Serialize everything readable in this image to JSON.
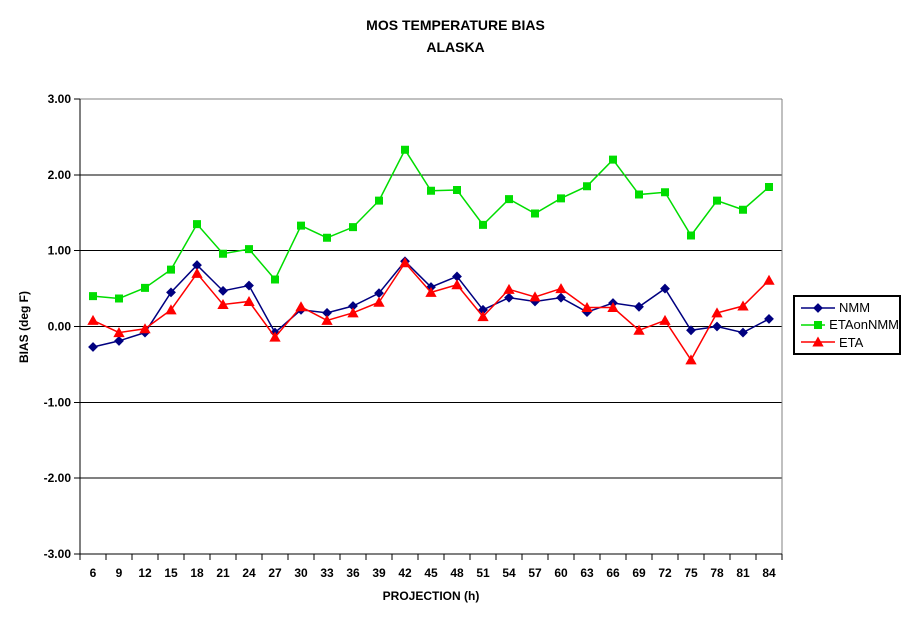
{
  "title": {
    "line1": "MOS TEMPERATURE BIAS",
    "line2": "ALASKA"
  },
  "chart_data": {
    "type": "line",
    "title": "MOS TEMPERATURE BIAS ALASKA",
    "xlabel": "PROJECTION (h)",
    "ylabel": "BIAS (deg F)",
    "x": [
      6,
      9,
      12,
      15,
      18,
      21,
      24,
      27,
      30,
      33,
      36,
      39,
      42,
      45,
      48,
      51,
      54,
      57,
      60,
      63,
      66,
      69,
      72,
      75,
      78,
      81,
      84
    ],
    "series": [
      {
        "name": "NMM",
        "color": "#000080",
        "marker": "diamond",
        "values": [
          -0.27,
          -0.19,
          -0.08,
          0.45,
          0.81,
          0.47,
          0.54,
          -0.08,
          0.22,
          0.18,
          0.27,
          0.44,
          0.86,
          0.52,
          0.66,
          0.22,
          0.38,
          0.33,
          0.38,
          0.19,
          0.31,
          0.26,
          0.5,
          -0.05,
          0.0,
          -0.08,
          0.1
        ]
      },
      {
        "name": "ETAonNMM",
        "color": "#00DD00",
        "marker": "square",
        "values": [
          0.4,
          0.37,
          0.51,
          0.75,
          1.35,
          0.96,
          1.02,
          0.62,
          1.33,
          1.17,
          1.31,
          1.66,
          2.33,
          1.79,
          1.8,
          1.34,
          1.68,
          1.49,
          1.69,
          1.85,
          2.2,
          1.74,
          1.77,
          1.2,
          1.66,
          1.54,
          1.84
        ]
      },
      {
        "name": "ETA",
        "color": "#FF0000",
        "marker": "triangle",
        "values": [
          0.08,
          -0.08,
          -0.03,
          0.22,
          0.7,
          0.29,
          0.33,
          -0.14,
          0.26,
          0.08,
          0.18,
          0.32,
          0.84,
          0.45,
          0.55,
          0.13,
          0.49,
          0.39,
          0.5,
          0.25,
          0.25,
          -0.05,
          0.08,
          -0.44,
          0.18,
          0.27,
          0.61
        ]
      }
    ],
    "ylim": [
      -3,
      3
    ],
    "ytick_interval": 1.0,
    "ytick_labels": [
      "3.00",
      "2.00",
      "1.00",
      "0.00",
      "-1.00",
      "-2.00",
      "-3.00"
    ],
    "grid": true,
    "legend_position": "right"
  },
  "colors": {
    "gridline": "#000000",
    "plot_border": "#808080",
    "axis": "#000000",
    "text": "#000000",
    "background": "#FFFFFF"
  }
}
